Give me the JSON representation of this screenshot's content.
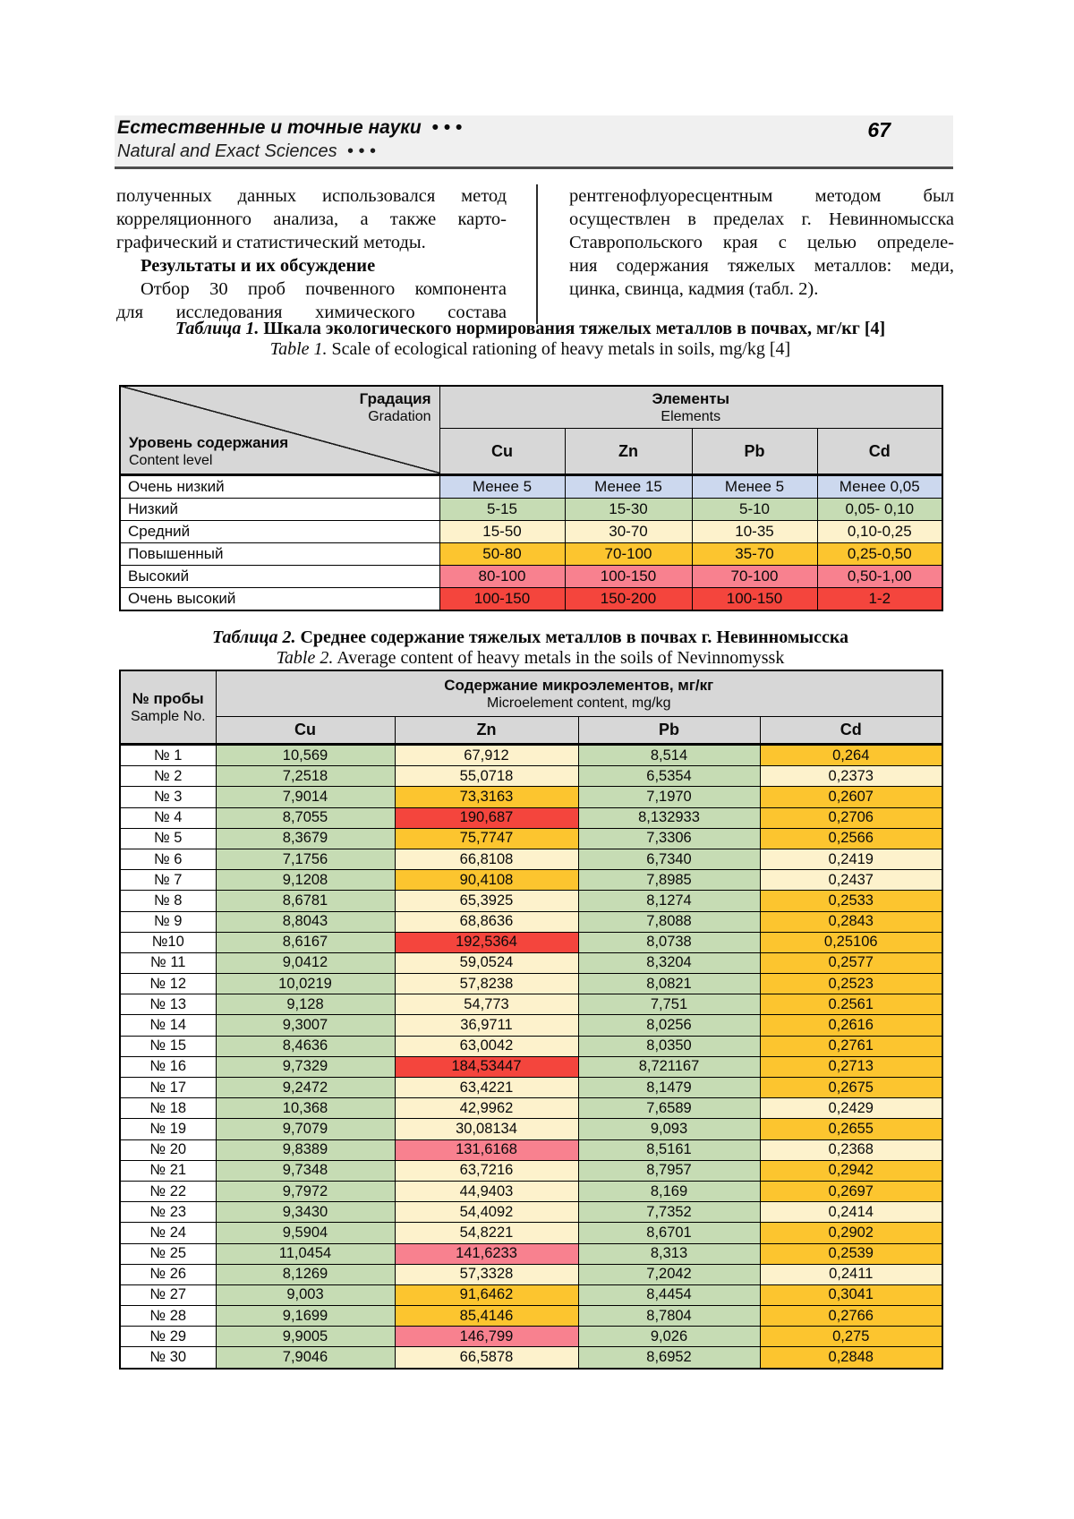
{
  "page": {
    "number": "67"
  },
  "header": {
    "title_ru": "Естественные и точные науки",
    "dots_ru": "• • •",
    "title_en": "Natural and Exact Sciences",
    "dots_en": "• • •"
  },
  "colors": {
    "blue": "#ccd8ee",
    "green": "#c6dcb4",
    "cream": "#fdf2cc",
    "orange": "#fcc52f",
    "pink": "#f8818f",
    "red": "#f4453d",
    "header_grey": "#d7d7d7",
    "band_grey": "#f0f0f0"
  },
  "left_column": {
    "lines": [
      {
        "t": "полученных данных использовался метод",
        "s": "j"
      },
      {
        "t": "корреляционного анализа, а также карто-",
        "s": "j"
      },
      {
        "t": "графический и статистический методы.",
        "s": "l"
      },
      {
        "t": "Результаты и их обсуждение",
        "s": "bi"
      },
      {
        "t": "Отбор 30 проб почвенного компонента",
        "s": "ij"
      },
      {
        "t": "для исследования химического состава",
        "s": "j"
      }
    ]
  },
  "right_column": {
    "lines": [
      {
        "t": "рентгенофлуоресцентным методом был",
        "s": "j"
      },
      {
        "t": "осуществлен в пределах г. Невинномысска",
        "s": "j"
      },
      {
        "t": "Ставропольского края с целью определе-",
        "s": "j"
      },
      {
        "t": "ния содержания тяжелых металлов: меди,",
        "s": "j"
      },
      {
        "t": "цинка, свинца, кадмия (табл. 2).",
        "s": "l"
      }
    ]
  },
  "table1": {
    "title_ru_label": "Таблица 1.",
    "title_ru_rest": " Шкала экологического нормирования тяжелых металлов в почвах, мг/кг [4]",
    "title_en_label": "Table 1.",
    "title_en_rest": " Scale of ecological rationing of heavy metals in soils, mg/kg [4]",
    "corner": {
      "top_ru": "Градация",
      "top_en": "Gradation",
      "bottom_ru": "Уровень содержания",
      "bottom_en": "Content level"
    },
    "group_header": {
      "ru": "Элементы",
      "en": "Elements"
    },
    "element_cols": [
      "Cu",
      "Zn",
      "Pb",
      "Cd"
    ],
    "rows": [
      {
        "label": "Очень низкий",
        "color": "blue",
        "values": [
          "Менее 5",
          "Менее 15",
          "Менее 5",
          "Менее 0,05"
        ]
      },
      {
        "label": "Низкий",
        "color": "green",
        "values": [
          "5-15",
          "15-30",
          "5-10",
          "0,05- 0,10"
        ]
      },
      {
        "label": "Средний",
        "color": "cream",
        "values": [
          "15-50",
          "30-70",
          "10-35",
          "0,10-0,25"
        ]
      },
      {
        "label": "Повышенный",
        "color": "orange",
        "values": [
          "50-80",
          "70-100",
          "35-70",
          "0,25-0,50"
        ]
      },
      {
        "label": "Высокий",
        "color": "pink",
        "values": [
          "80-100",
          "100-150",
          "70-100",
          "0,50-1,00"
        ]
      },
      {
        "label": "Очень высокий",
        "color": "red",
        "values": [
          "100-150",
          "150-200",
          "100-150",
          "1-2"
        ]
      }
    ]
  },
  "table2": {
    "title_ru_label": "Таблица 2.",
    "title_ru_rest": " Среднее содержание тяжелых металлов в почвах г. Невинномысска",
    "title_en_label": "Table 2.",
    "title_en_rest": " Average content of heavy metals in the soils of Nevinnomyssk",
    "sample_header": {
      "ru": "№ пробы",
      "en": "Sample No."
    },
    "group_header": {
      "ru": "Содержание микроэлементов, мг/кг",
      "en": "Microelement content, mg/kg"
    },
    "element_cols": [
      "Cu",
      "Zn",
      "Pb",
      "Cd"
    ],
    "rows": [
      {
        "label": "№ 1",
        "values": [
          "10,569",
          "67,912",
          "8,514",
          "0,264"
        ],
        "colors": [
          "green",
          "cream",
          "green",
          "orange"
        ]
      },
      {
        "label": "№ 2",
        "values": [
          "7,2518",
          "55,0718",
          "6,5354",
          "0,2373"
        ],
        "colors": [
          "green",
          "cream",
          "green",
          "cream"
        ]
      },
      {
        "label": "№ 3",
        "values": [
          "7,9014",
          "73,3163",
          "7,1970",
          "0,2607"
        ],
        "colors": [
          "green",
          "orange",
          "green",
          "orange"
        ]
      },
      {
        "label": "№ 4",
        "values": [
          "8,7055",
          "190,687",
          "8,132933",
          "0,2706"
        ],
        "colors": [
          "green",
          "red",
          "green",
          "orange"
        ]
      },
      {
        "label": "№ 5",
        "values": [
          "8,3679",
          "75,7747",
          "7,3306",
          "0,2566"
        ],
        "colors": [
          "green",
          "orange",
          "green",
          "orange"
        ]
      },
      {
        "label": "№ 6",
        "values": [
          "7,1756",
          "66,8108",
          "6,7340",
          "0,2419"
        ],
        "colors": [
          "green",
          "cream",
          "green",
          "cream"
        ]
      },
      {
        "label": "№ 7",
        "values": [
          "9,1208",
          "90,4108",
          "7,8985",
          "0,2437"
        ],
        "colors": [
          "green",
          "orange",
          "green",
          "cream"
        ]
      },
      {
        "label": "№ 8",
        "values": [
          "8,6781",
          "65,3925",
          "8,1274",
          "0,2533"
        ],
        "colors": [
          "green",
          "cream",
          "green",
          "orange"
        ]
      },
      {
        "label": "№ 9",
        "values": [
          "8,8043",
          "68,8636",
          "7,8088",
          "0,2843"
        ],
        "colors": [
          "green",
          "cream",
          "green",
          "orange"
        ]
      },
      {
        "label": "№10",
        "values": [
          "8,6167",
          "192,5364",
          "8,0738",
          "0,25106"
        ],
        "colors": [
          "green",
          "red",
          "green",
          "orange"
        ]
      },
      {
        "label": "№ 11",
        "values": [
          "9,0412",
          "59,0524",
          "8,3204",
          "0,2577"
        ],
        "colors": [
          "green",
          "cream",
          "green",
          "orange"
        ]
      },
      {
        "label": "№ 12",
        "values": [
          "10,0219",
          "57,8238",
          "8,0821",
          "0,2523"
        ],
        "colors": [
          "green",
          "cream",
          "green",
          "orange"
        ]
      },
      {
        "label": "№ 13",
        "values": [
          "9,128",
          "54,773",
          "7,751",
          "0.2561"
        ],
        "colors": [
          "green",
          "cream",
          "green",
          "orange"
        ]
      },
      {
        "label": "№ 14",
        "values": [
          "9,3007",
          "36,9711",
          "8,0256",
          "0,2616"
        ],
        "colors": [
          "green",
          "cream",
          "green",
          "orange"
        ]
      },
      {
        "label": "№ 15",
        "values": [
          "8,4636",
          "63,0042",
          "8,0350",
          "0,2761"
        ],
        "colors": [
          "green",
          "cream",
          "green",
          "orange"
        ]
      },
      {
        "label": "№ 16",
        "values": [
          "9,7329",
          "184,53447",
          "8,721167",
          "0,2713"
        ],
        "colors": [
          "green",
          "red",
          "green",
          "orange"
        ]
      },
      {
        "label": "№ 17",
        "values": [
          "9,2472",
          "63,4221",
          "8,1479",
          "0,2675"
        ],
        "colors": [
          "green",
          "cream",
          "green",
          "orange"
        ]
      },
      {
        "label": "№ 18",
        "values": [
          "10,368",
          "42,9962",
          "7,6589",
          "0,2429"
        ],
        "colors": [
          "green",
          "cream",
          "green",
          "cream"
        ]
      },
      {
        "label": "№ 19",
        "values": [
          "9,7079",
          "30,08134",
          "9,093",
          "0,2655"
        ],
        "colors": [
          "green",
          "cream",
          "green",
          "orange"
        ]
      },
      {
        "label": "№ 20",
        "values": [
          "9,8389",
          "131,6168",
          "8,5161",
          "0,2368"
        ],
        "colors": [
          "green",
          "pink",
          "green",
          "cream"
        ]
      },
      {
        "label": "№ 21",
        "values": [
          "9,7348",
          "63,7216",
          "8,7957",
          "0,2942"
        ],
        "colors": [
          "green",
          "cream",
          "green",
          "orange"
        ]
      },
      {
        "label": "№ 22",
        "values": [
          "9,7972",
          "44,9403",
          "8,169",
          "0,2697"
        ],
        "colors": [
          "green",
          "cream",
          "green",
          "orange"
        ]
      },
      {
        "label": "№ 23",
        "values": [
          "9,3430",
          "54,4092",
          "7,7352",
          "0,2414"
        ],
        "colors": [
          "green",
          "cream",
          "green",
          "cream"
        ]
      },
      {
        "label": "№ 24",
        "values": [
          "9,5904",
          "54,8221",
          "8,6701",
          "0,2902"
        ],
        "colors": [
          "green",
          "cream",
          "green",
          "orange"
        ]
      },
      {
        "label": "№ 25",
        "values": [
          "11,0454",
          "141,6233",
          "8,313",
          "0,2539"
        ],
        "colors": [
          "green",
          "pink",
          "green",
          "orange"
        ]
      },
      {
        "label": "№ 26",
        "values": [
          "8,1269",
          "57,3328",
          "7,2042",
          "0,2411"
        ],
        "colors": [
          "green",
          "cream",
          "green",
          "cream"
        ]
      },
      {
        "label": "№ 27",
        "values": [
          "9,003",
          "91,6462",
          "8,4454",
          "0,3041"
        ],
        "colors": [
          "green",
          "orange",
          "green",
          "orange"
        ]
      },
      {
        "label": "№ 28",
        "values": [
          "9,1699",
          "85,4146",
          "8,7804",
          "0,2766"
        ],
        "colors": [
          "green",
          "orange",
          "green",
          "orange"
        ]
      },
      {
        "label": "№ 29",
        "values": [
          "9,9005",
          "146,799",
          "9,026",
          "0,275"
        ],
        "colors": [
          "green",
          "pink",
          "green",
          "orange"
        ]
      },
      {
        "label": "№ 30",
        "values": [
          "7,9046",
          "66,5878",
          "8,6952",
          "0,2848"
        ],
        "colors": [
          "green",
          "cream",
          "green",
          "orange"
        ]
      }
    ]
  }
}
